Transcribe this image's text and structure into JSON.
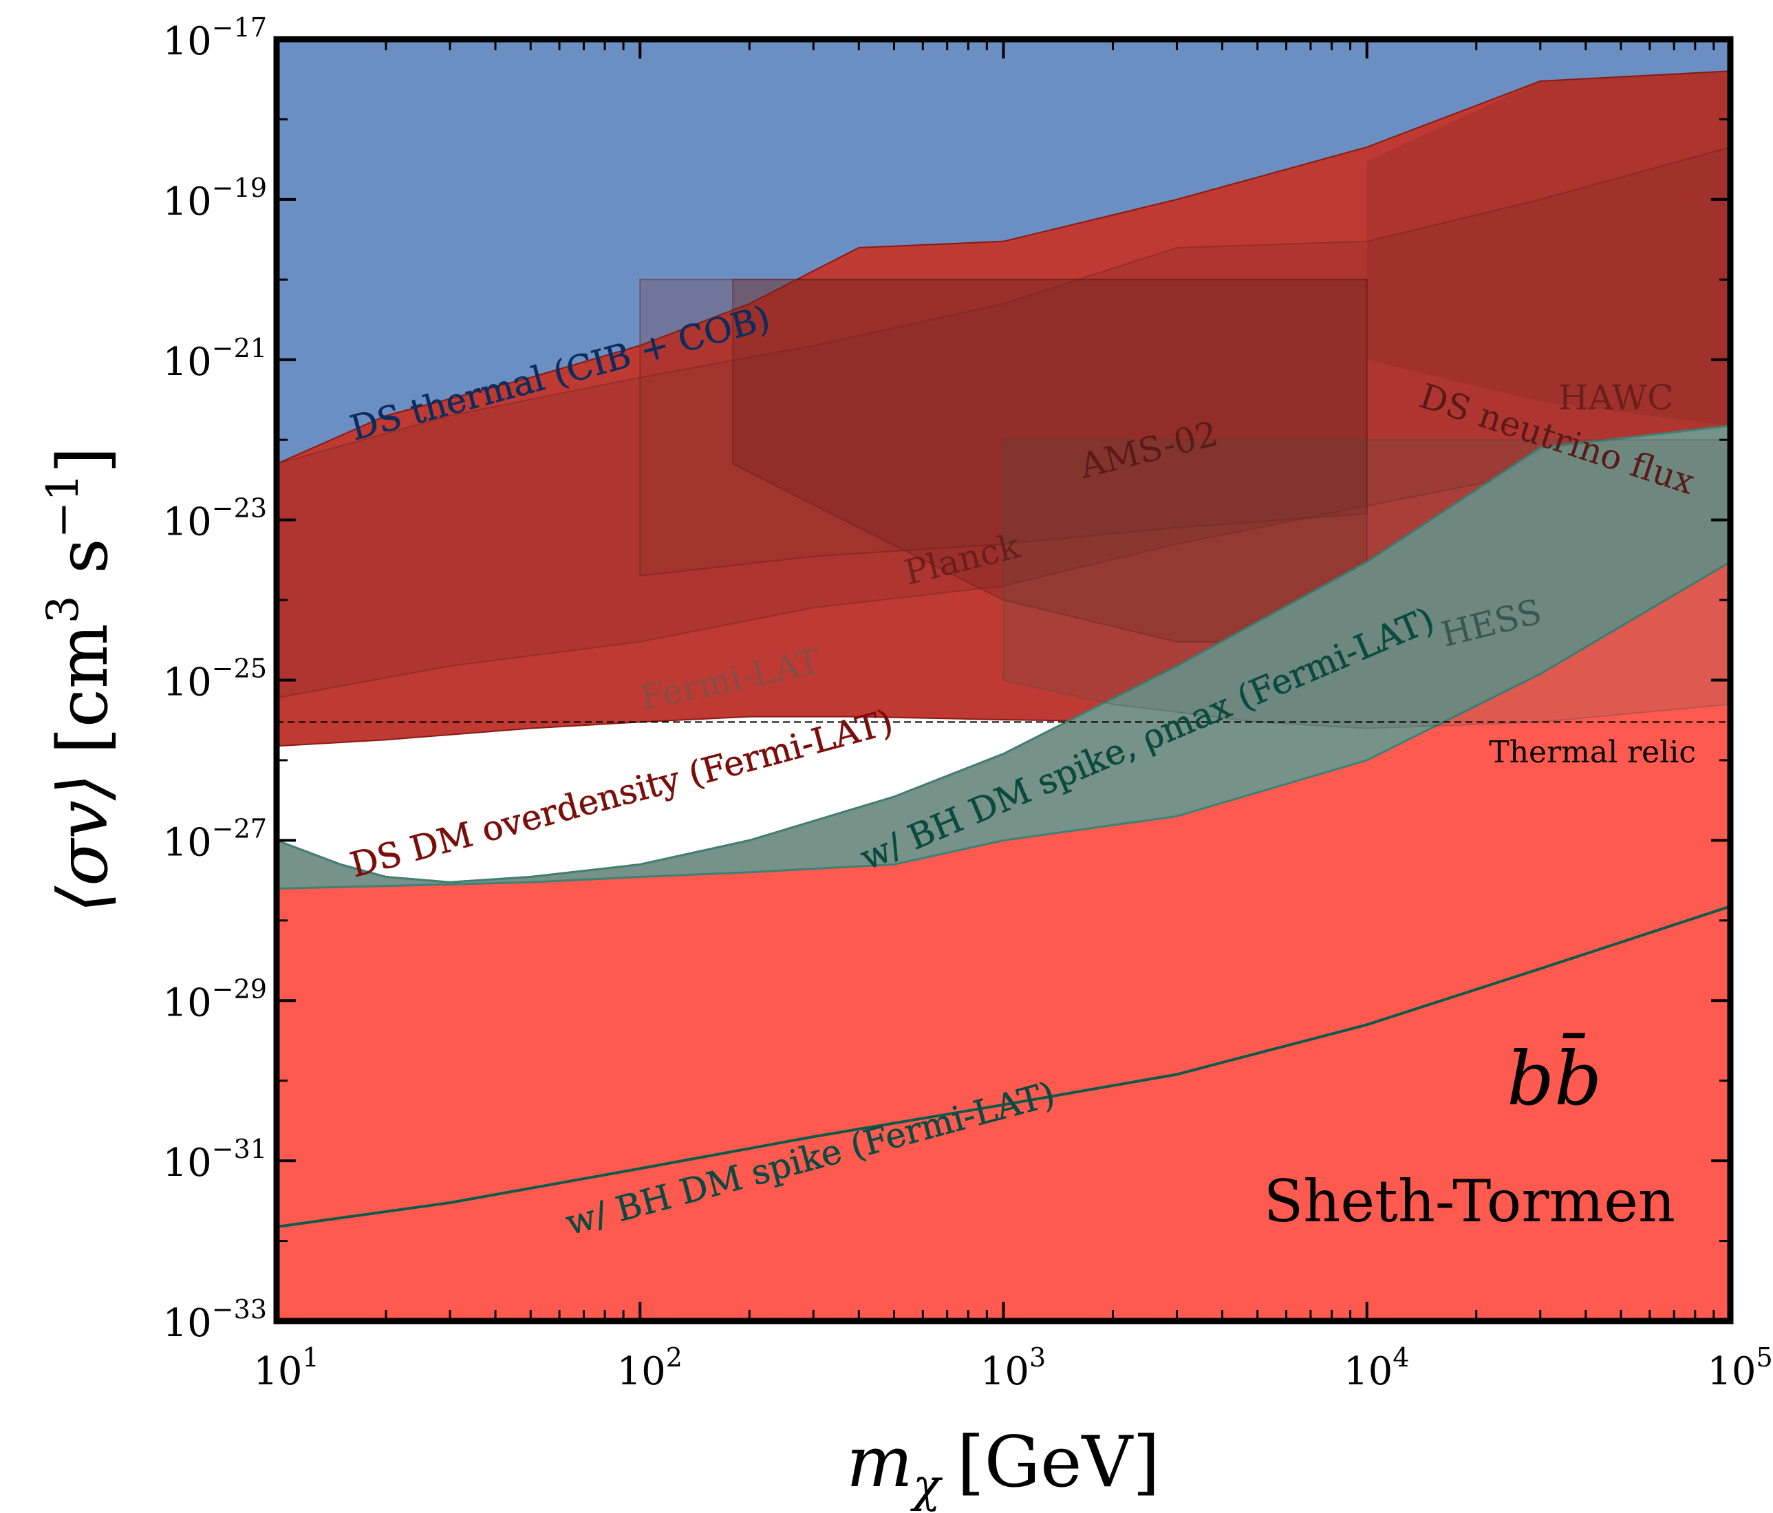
{
  "chart_data": {
    "type": "area",
    "xscale": "log",
    "yscale": "log",
    "xlim": [
      10,
      100000
    ],
    "ylim": [
      1e-33,
      1e-17
    ],
    "xlabel": {
      "main": "m",
      "sub": "χ",
      "unit": "[GeV]"
    },
    "ylabel": {
      "main": "⟨σv⟩",
      "unit_open": "[cm",
      "unit_exp1": "3",
      "unit_mid": " s",
      "unit_exp2": "−1",
      "unit_close": "]"
    },
    "xticks": [
      {
        "value": 10,
        "base": "10",
        "exp": "1"
      },
      {
        "value": 100,
        "base": "10",
        "exp": "2"
      },
      {
        "value": 1000,
        "base": "10",
        "exp": "3"
      },
      {
        "value": 10000,
        "base": "10",
        "exp": "4"
      },
      {
        "value": 100000,
        "base": "10",
        "exp": "5"
      }
    ],
    "yticks": [
      {
        "value": 1e-17,
        "base": "10",
        "exp": "−17"
      },
      {
        "value": 1e-19,
        "base": "10",
        "exp": "−19"
      },
      {
        "value": 1e-21,
        "base": "10",
        "exp": "−21"
      },
      {
        "value": 1e-23,
        "base": "10",
        "exp": "−23"
      },
      {
        "value": 1e-25,
        "base": "10",
        "exp": "−25"
      },
      {
        "value": 1e-27,
        "base": "10",
        "exp": "−27"
      },
      {
        "value": 1e-29,
        "base": "10",
        "exp": "−29"
      },
      {
        "value": 1e-31,
        "base": "10",
        "exp": "−31"
      },
      {
        "value": 1e-33,
        "base": "10",
        "exp": "−33"
      }
    ],
    "channel_label": "bb̄",
    "model_label": "Sheth-Tormen",
    "thermal_relic": {
      "value": 3e-26,
      "label": "Thermal relic"
    },
    "series": [
      {
        "name": "DS thermal (CIB + COB)",
        "color": "#6b8fc2",
        "text_color": "#0d2c5e",
        "kind": "fill_above",
        "x": [
          10,
          20,
          50,
          100,
          200,
          400,
          1000,
          3000,
          10000,
          30000,
          100000
        ],
        "y": [
          5e-23,
          2e-22,
          6e-22,
          1.5e-21,
          5e-21,
          2.5e-20,
          3e-20,
          1e-19,
          4.5e-19,
          3e-18,
          4e-18
        ]
      },
      {
        "name": "DS neutrino flux",
        "color": "#c03a34",
        "text_color": "#5a1a18",
        "kind": "band",
        "x": [
          10,
          20,
          50,
          100,
          200,
          400,
          1000,
          3000,
          10000,
          30000,
          100000
        ],
        "y": [
          5e-23,
          2e-22,
          6e-22,
          1.5e-21,
          5e-21,
          2.5e-20,
          3e-20,
          1e-19,
          4.5e-19,
          3e-18,
          4e-18
        ],
        "y_low": [
          1.5e-26,
          1.8e-26,
          2.5e-26,
          3e-26,
          3.5e-26,
          3.5e-26,
          3.2e-26,
          3e-26,
          2.5e-26,
          2e-26,
          1.8e-26
        ]
      },
      {
        "name": "DS DM overdensity (Fermi-LAT)",
        "color": "#ff5a50",
        "text_color": "#7a0e0a",
        "kind": "fill_above",
        "x": [
          10,
          15,
          20,
          30,
          50,
          100,
          200,
          500,
          1000,
          3000,
          10000,
          30000,
          100000
        ],
        "y": [
          1e-27,
          5e-28,
          3.5e-28,
          3e-28,
          3.5e-28,
          5e-28,
          1e-27,
          3.5e-27,
          1.2e-26,
          1.5e-25,
          3e-24,
          8e-23,
          1.5e-22
        ]
      },
      {
        "name": "w/ BH DM spike, ρmax (Fermi-LAT)",
        "color": "#5f9e93",
        "text_color": "#0b4a40",
        "kind": "fill_above",
        "x": [
          10,
          20,
          50,
          100,
          200,
          500,
          1000,
          3000,
          10000,
          30000,
          100000
        ],
        "y": [
          2.5e-28,
          2.7e-28,
          3e-28,
          3.5e-28,
          4e-28,
          5e-28,
          1e-27,
          2e-27,
          1e-26,
          1.2e-25,
          3e-24
        ]
      },
      {
        "name": "w/ BH DM spike (Fermi-LAT)",
        "color": "#0b5a4a",
        "text_color": "#0b4a40",
        "kind": "line_hatched_above",
        "x": [
          10,
          30,
          100,
          300,
          1000,
          3000,
          10000,
          30000,
          100000
        ],
        "y": [
          1.5e-32,
          3e-32,
          8e-32,
          2e-31,
          5e-31,
          1.2e-30,
          5e-30,
          2.5e-29,
          1.5e-28
        ]
      },
      {
        "name": "Fermi-LAT",
        "color": "#7a2a25",
        "text_color": "#8a4a44",
        "kind": "overlay",
        "x": [
          10,
          30,
          100,
          300,
          1000,
          3000,
          10000,
          30000,
          100000
        ],
        "y": [
          6e-26,
          1.5e-25,
          3e-25,
          8e-25,
          1.5e-24,
          5e-24,
          1.5e-23,
          4e-23,
          1e-22
        ]
      },
      {
        "name": "Planck",
        "color": "#7a2a25",
        "text_color": "#5a1a18",
        "kind": "overlay",
        "x": [
          100,
          100,
          300,
          1000,
          3000,
          10000,
          10000
        ],
        "y": [
          1e-20,
          2e-24,
          3.5e-24,
          5e-24,
          8e-24,
          1.2e-23,
          1e-20
        ]
      },
      {
        "name": "AMS-02",
        "color": "#6e201c",
        "text_color": "#5a1a18",
        "kind": "overlay",
        "x": [
          180,
          180,
          400,
          1000,
          3000,
          10000,
          10000
        ],
        "y": [
          1e-20,
          5e-23,
          8e-24,
          1e-24,
          3e-25,
          3e-25,
          1e-20
        ]
      },
      {
        "name": "HESS",
        "color": "#4a5a55",
        "text_color": "#2d4a44",
        "kind": "overlay",
        "x": [
          1000,
          2000,
          5000,
          10000,
          30000,
          100000
        ],
        "y": [
          1e-25,
          5e-26,
          3e-26,
          2.5e-26,
          3e-26,
          5e-26
        ]
      },
      {
        "name": "HAWC",
        "color": "#6e201c",
        "text_color": "#5a1a18",
        "kind": "overlay",
        "x": [
          10000,
          30000,
          100000
        ],
        "y": [
          1e-21,
          3e-22,
          1.5e-22
        ]
      }
    ]
  }
}
